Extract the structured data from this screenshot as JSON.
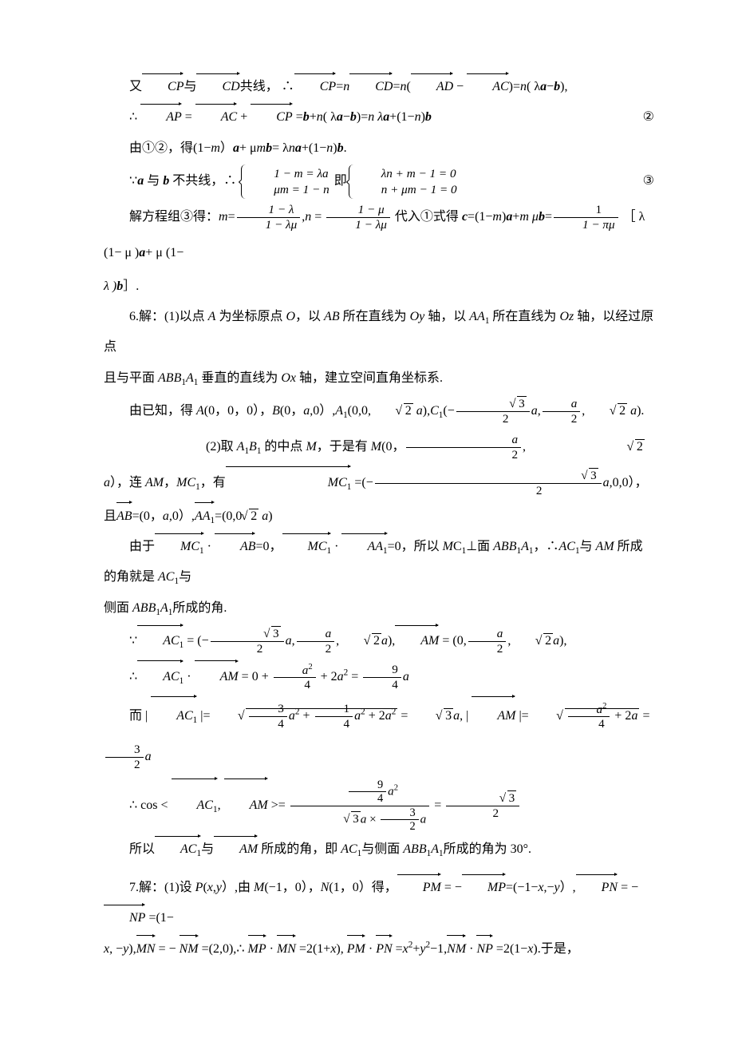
{
  "page": {
    "background_color": "#ffffff",
    "text_color": "#000000",
    "font_family": "Times New Roman, SimSun, serif",
    "body_fontsize": 16,
    "line_height": 2.4
  },
  "p1": {
    "t1": "又",
    "v1": "CP",
    "t2": "与",
    "v2": "CD",
    "t3": "共线，",
    "t4": "∴",
    "v3": "CP",
    "t5": "=",
    "n": "n",
    "v4": "CD",
    "eq1": "=",
    "lp": "(",
    "v5": "AD",
    "minus": " − ",
    "v6": "AC",
    "rp": ")=",
    "tail": "( λ",
    "a": "a",
    "mb": "−",
    "b": "b",
    "end": "),"
  },
  "p2": {
    "t1": "∴ ",
    "v1": "AP",
    "eq": " = ",
    "v2": "AC",
    "plus1": " + ",
    "v3": "CP",
    "eq2": " =",
    "b": "b",
    "plus2": "+",
    "n1": "n",
    "lam": "( λ",
    "a": "a",
    "mb": "−",
    "b2": "b",
    "rp": ")=",
    "n2": "n λ",
    "a2": "a",
    "plus3": "+(1−",
    "n3": "n",
    "rp2": ")",
    "b3": "b",
    "eqnum": "②"
  },
  "p3": {
    "t1": "由①②，得(1−",
    "m": "m",
    "t2": "）",
    "a": "a",
    "t3": "+ μ",
    "m2": "m",
    "b": "b",
    "t4": "= λ",
    "n": "n",
    "a2": "a",
    "t5": "+(1−",
    "n2": "n",
    "t6": ")",
    "b2": "b",
    "t7": "."
  },
  "p4": {
    "t1": "∵",
    "a": "a",
    "t2": " 与 ",
    "b": "b",
    "t3": " 不共线，",
    "t4": "∴",
    "brace1_l1": "1 − m = λa",
    "brace1_l2": "μm = 1 − n",
    "mid": "即",
    "brace2_l1": "λn + m − 1 = 0",
    "brace2_l2": "n + μm − 1 = 0",
    "eqnum": "③"
  },
  "p5": {
    "t1": "解方程组③得：",
    "m": "m",
    "eq1": "=",
    "f1n": "1 − λ",
    "f1d": "1 − λμ",
    "comma": ",",
    "n": "n",
    "eq2": " = ",
    "f2n": "1 − μ",
    "f2d": "1 − λμ",
    "t2": " 代入①式得 ",
    "c": "c",
    "t3": "=(1−",
    "m2": "m",
    "t4": ")",
    "a": "a",
    "t5": "+",
    "m3": "m μ",
    "b": "b",
    "t6": "=",
    "f3n": "1",
    "f3d": "1 − πμ",
    "t7": " ［ λ (1− μ )",
    "a2": "a",
    "t8": "+ μ (1−"
  },
  "p5b": {
    "t1": "λ )",
    "b": "b",
    "t2": "］."
  },
  "p6a": {
    "t1": "6.解：(1)以点 ",
    "A": "A",
    "t2": " 为坐标原点 ",
    "O": "O",
    "t3": "，以 ",
    "AB": "AB",
    "t4": " 所在直线为 ",
    "Oy": "Oy",
    "t5": " 轴，以 ",
    "AA1": "AA",
    "sub1": "1",
    "t6": " 所在直线为 ",
    "Oz": "Oz",
    "t7": " 轴，以经过原点"
  },
  "p6b": {
    "t1": "且与平面 ",
    "ABB1A1": "ABB",
    "s1": "1",
    "A": "A",
    "s2": "1",
    "t2": " 垂直的直线为 ",
    "Ox": "Ox",
    "t3": " 轴，建立空间直角坐标系."
  },
  "p6c": {
    "t1": "由已知，得 ",
    "A": "A",
    "Ac": "(0，0，0），",
    "B": "B",
    "Bc": "(0，",
    "a1": "a",
    "Bc2": ",0）,",
    "A1": "A",
    "s1": "1",
    "A1c": "(0,0,",
    "sq1": "2",
    "a2": " a",
    "A1c2": "),",
    "C1": "C",
    "s2": "1",
    "C1c": "(−",
    "sq2": "3",
    "over2a": "2",
    "a3": "a",
    "comma": ",",
    "ahalf_n": "a",
    "ahalf_d": "2",
    "comma2": ",",
    "sq3": "2",
    "a4": " a",
    "C1end": ")."
  },
  "p6d": {
    "t1": "(2)取 ",
    "A1B1_A": "A",
    "s1": "1",
    "A1B1_B": "B",
    "s2": "1",
    "t2": " 的中点 ",
    "M": "M",
    "t3": "，于是有 ",
    "M2": "M",
    "Mc": "(0，",
    "an": "a",
    "ad": "2",
    "comma": ",",
    "sq": "2",
    "a2": " a",
    "Mc2": "），连 ",
    "AM": "AM",
    "t4": "，",
    "MC1": "MC",
    "s3": "1",
    "t5": "，有",
    "vMC1": "MC",
    "vs3": "1",
    "eq": " =(−",
    "sq3": "3",
    "d2": "2",
    "a3": "a",
    "tail": ",0,0），"
  },
  "p6e": {
    "t1": "且",
    "vAB": "AB",
    "t2": "=(0，",
    "a": "a",
    "t3": ",0）,",
    "vAA1": "AA",
    "s1": "1",
    "t4": "=(0,0",
    "sq": "2",
    "a2": " a",
    "t5": ")"
  },
  "p6f": {
    "t1": "由于",
    "v1": "MC",
    "s1": "1",
    "dot": " · ",
    "v2": "AB",
    "t2": "=0，",
    "v3": "MC",
    "s2": "1",
    "v4": "AA",
    "s3": "1",
    "t3": "=0，所以 ",
    "M": "M",
    "C1": "C",
    "s4": "1",
    "t4": "⊥面 ",
    "ABB1A1a": "ABB",
    "ss1": "1",
    "ABB1A1b": "A",
    "ss2": "1",
    "t5": "，",
    "t6": "∴",
    "AC1a": "AC",
    "s5": "1",
    "t7": "与 ",
    "AM": "AM",
    "t8": " 所成的角就是 ",
    "AC1b": "AC",
    "s6": "1",
    "t9": "与"
  },
  "p6g": {
    "t1": "侧面 ",
    "a": "ABB",
    "s1": "1",
    "b": "A",
    "s2": "1",
    "t2": "所成的角."
  },
  "e1": {
    "pre": "∵",
    "v1": "AC",
    "s1": "1",
    "t1": " = (−",
    "sqn": "3",
    "sqd": "2",
    "a1": "a",
    "c1": ",",
    "an": "a",
    "ad": "2",
    "c2": ",",
    "sq2": "2",
    "a2": "a",
    "t2": "),",
    "v2": "AM",
    "t3": " = (0,",
    "an2": "a",
    "ad2": "2",
    "c3": ",",
    "sq3": "2",
    "a3": "a",
    "t4": "),"
  },
  "e2": {
    "pre": "∴",
    "v1": "AC",
    "s1": "1",
    "dot": " · ",
    "v2": "AM",
    "t1": " = 0 + ",
    "n1": "a",
    "sup1": "2",
    "d1": "4",
    "t2": " + 2",
    "a": "a",
    "sup2": "2",
    "t3": " = ",
    "n2": "9",
    "d2": "4",
    "a2": "a"
  },
  "e3": {
    "pre": "而 | ",
    "v1": "AC",
    "s1": "1",
    "t1": " |= ",
    "rad1_a": "3",
    "rad1_b": "4",
    "rad1_c": "a",
    "rad1_s": "2",
    "rad1_d": "1",
    "rad1_e": "4",
    "rad1_f": "a",
    "rad1_g": "2",
    "rad1_h": "a",
    "t2": " = ",
    "sq3": "3",
    "a1": "a",
    "t3": ", | ",
    "v2": "AM",
    "t4": " |= ",
    "rad2_n": "a",
    "rad2_s": "2",
    "rad2_d": "4",
    "rad2_p": " + 2",
    "rad2_a": "a",
    "t5": " = ",
    "n3": "3",
    "d3": "2",
    "a2": "a"
  },
  "e4": {
    "pre": "∴ cos < ",
    "v1": "AC",
    "s1": "1",
    "c": ", ",
    "v2": "AM",
    "t1": " >= ",
    "nn": "9",
    "nd": "4",
    "ns": "a",
    "nsup": "2",
    "dn1": "3",
    "da1": "a",
    "dx": " × ",
    "dn2": "3",
    "dd2": "2",
    "da2": "a",
    "t2": " = ",
    "rn": "3",
    "rd": "2"
  },
  "p6h": {
    "t1": "所以",
    "v1": "AC",
    "s1": "1",
    "t2": "与",
    "v2": "AM",
    "t3": " 所成的角，即 ",
    "AC1": "AC",
    "s2": "1",
    "t4": "与侧面 ",
    "a": "ABB",
    "ss1": "1",
    "b": "A",
    "ss2": "1",
    "t5": "所成的角为 30°."
  },
  "p7": {
    "t1": "7.解：(1)设 ",
    "P": "P",
    "t2": "(",
    "x": "x",
    "c": ",",
    "y": "y",
    "t3": "）,由 ",
    "M": "M",
    "Mc": "(−1，0），",
    "N": "N",
    "Nc": "(1，0）得，",
    "vPM": "PM",
    "eq1": "  = −",
    "vMP": "MP",
    "t4": "=(−1−",
    "x2": "x",
    "t5": ",−",
    "y2": "y",
    "t6": "）,",
    "vPN": "PN",
    "eq2": " = −",
    "vNP": "NP",
    "t7": "  =(1−"
  },
  "p7b": {
    "x": "x",
    "t1": ", −",
    "y": "y",
    "t2": "),",
    "vMN": "MN",
    "t3": "  = − ",
    "vNM": "NM",
    "t4": " =(2,0),",
    "t4b": "∴ ",
    "vMP": "MP",
    "dot": " · ",
    "vMN2": "MN",
    "t5": " =2(1+",
    "x2": "x",
    "t6": "),  ",
    "vPM": "PM",
    "vPN": "PN",
    "t7": " =",
    "x3": "x",
    "s2": "2",
    "t8": "+",
    "y2": "y",
    "s2b": "2",
    "t9": "−1,",
    "vNM2": "NM",
    "vNP": "NP",
    "t10": "  =2(1−",
    "x4": "x",
    "t11": ").于是，"
  }
}
